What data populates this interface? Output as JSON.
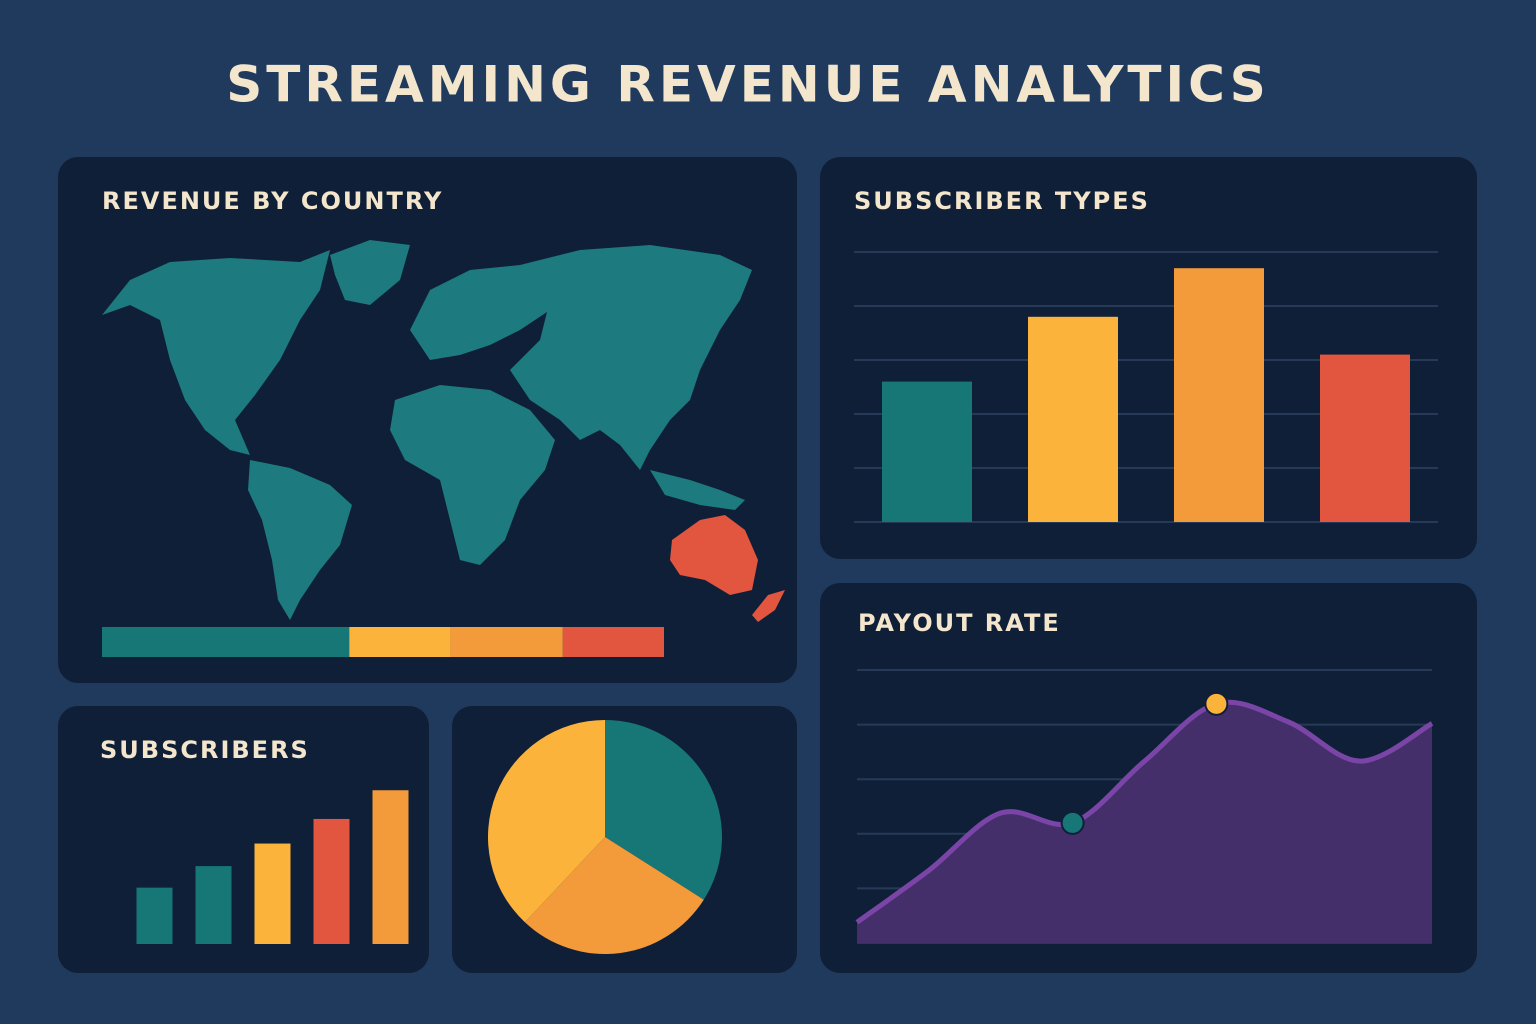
{
  "title": "STREAMING REVENUE ANALYTICS",
  "chart_data": [
    {
      "type": "map",
      "title": "REVENUE BY COUNTRY",
      "values": [
        44,
        18,
        20,
        18
      ],
      "colors": [
        "#177676",
        "#fbb33b",
        "#f39a3b",
        "#e2553f"
      ],
      "xlim": [
        0,
        100
      ],
      "map_color": "#1d7a7e",
      "highlight_color": "#e2553f"
    },
    {
      "type": "bar",
      "title": "SUBSCRIBER TYPES",
      "categories": [
        null,
        null,
        null,
        null
      ],
      "values": [
        2.6,
        3.8,
        4.7,
        3.1
      ],
      "colors": [
        "#177676",
        "#fbb33b",
        "#f39a3b",
        "#e2553f"
      ],
      "ylim": [
        0,
        5
      ],
      "yticks": [
        0,
        1,
        2,
        3,
        4,
        5
      ],
      "grid": true
    },
    {
      "type": "bar",
      "title": "SUBSCRIBERS",
      "categories": [
        null,
        null,
        null,
        null,
        null
      ],
      "values": [
        5.5,
        7.6,
        9.8,
        12.2,
        15
      ],
      "colors": [
        "#177676",
        "#177676",
        "#fbb33b",
        "#e2553f",
        "#f39a3b"
      ],
      "ylim": [
        0,
        16
      ],
      "grid": false
    },
    {
      "type": "pie",
      "values": [
        34,
        28,
        38
      ],
      "colors": [
        "#177676",
        "#f39a3b",
        "#fbb33b"
      ]
    },
    {
      "type": "area",
      "title": "PAYOUT RATE",
      "x": [
        0,
        1,
        2,
        3,
        4,
        5,
        6,
        7,
        8
      ],
      "values": [
        0.38,
        1.33,
        2.38,
        2.2,
        3.33,
        4.38,
        4.05,
        3.33,
        4.02
      ],
      "xlim": [
        0,
        8
      ],
      "ylim": [
        0,
        5
      ],
      "yticks": [
        0,
        1,
        2,
        3,
        4,
        5
      ],
      "grid": true,
      "color": "#7b45a8",
      "fill": "#452f6b",
      "markers": [
        {
          "index": 3,
          "color": "#177676"
        },
        {
          "index": 5,
          "color": "#fbb33b"
        }
      ]
    }
  ]
}
